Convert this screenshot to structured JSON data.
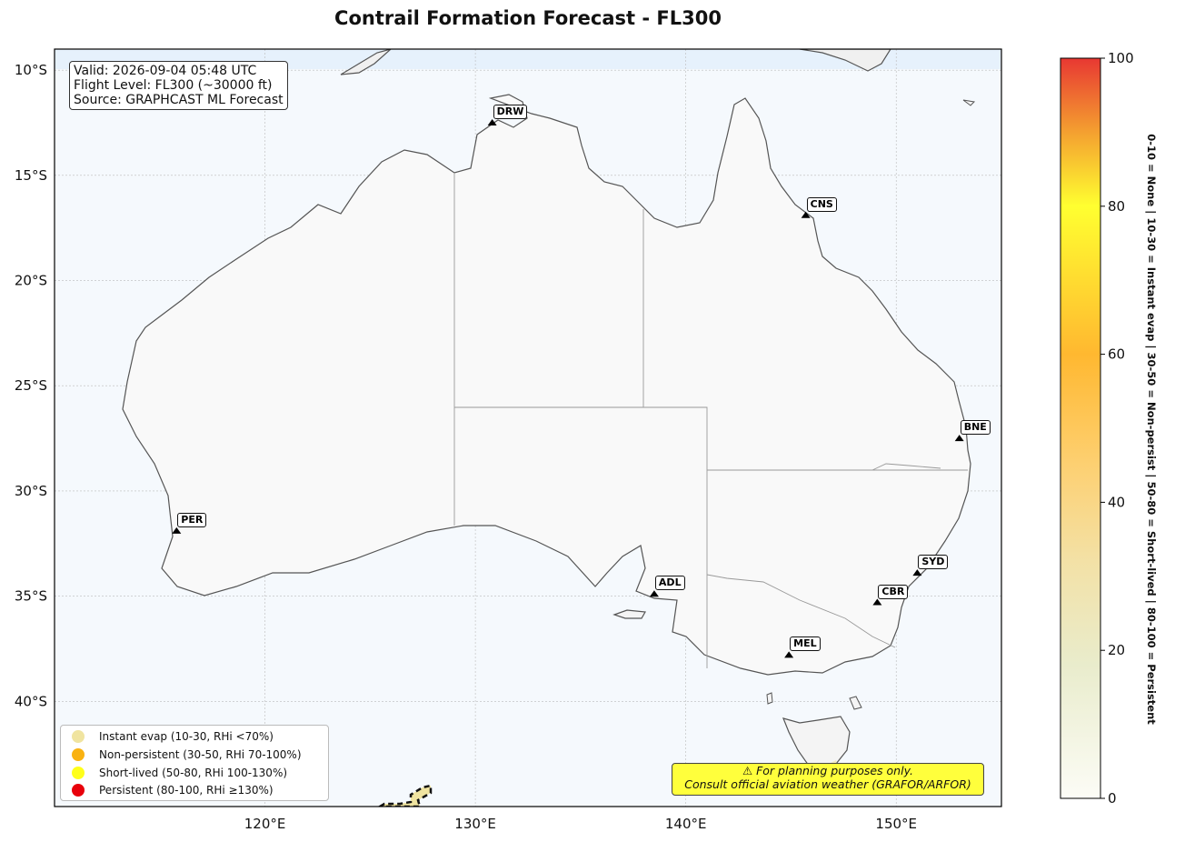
{
  "title": "Contrail Formation Forecast - FL300",
  "info": {
    "valid": "Valid: 2026-09-04 05:48 UTC",
    "flight_level": "Flight Level: FL300 (~30000 ft)",
    "source": "Source: GRAPHCAST ML Forecast"
  },
  "axes": {
    "lat_ticks": [
      "10°S",
      "15°S",
      "20°S",
      "25°S",
      "30°S",
      "35°S",
      "40°S"
    ],
    "lon_ticks": [
      "120°E",
      "130°E",
      "140°E",
      "150°E"
    ],
    "lat_values": [
      -10,
      -15,
      -20,
      -25,
      -30,
      -35,
      -40
    ],
    "lon_values": [
      120,
      130,
      140,
      150
    ],
    "lon_range": [
      110,
      155
    ],
    "lat_range": [
      -45,
      -9
    ]
  },
  "cities": [
    {
      "code": "DRW",
      "lon": 130.8,
      "lat": -12.5
    },
    {
      "code": "CNS",
      "lon": 145.7,
      "lat": -16.9
    },
    {
      "code": "BNE",
      "lon": 153.0,
      "lat": -27.5
    },
    {
      "code": "PER",
      "lon": 115.8,
      "lat": -31.9
    },
    {
      "code": "SYD",
      "lon": 151.0,
      "lat": -33.9
    },
    {
      "code": "CBR",
      "lon": 149.1,
      "lat": -35.3
    },
    {
      "code": "ADL",
      "lon": 138.5,
      "lat": -34.9
    },
    {
      "code": "MEL",
      "lon": 144.9,
      "lat": -37.8
    }
  ],
  "legend": [
    {
      "label": "Instant evap (10-30, RHi <70%)",
      "color": "#f0e4a0"
    },
    {
      "label": "Non-persistent (30-50, RHi 70-100%)",
      "color": "#f9b211"
    },
    {
      "label": "Short-lived (50-80, RHi 100-130%)",
      "color": "#ffff1a"
    },
    {
      "label": "Persistent (80-100, RHi ≥130%)",
      "color": "#e8000b"
    }
  ],
  "disclaimer": {
    "line1": "⚠ For planning purposes only.",
    "line2": "Consult official aviation weather (GRAFOR/ARFOR)"
  },
  "colorbar": {
    "ticks": [
      "0",
      "20",
      "40",
      "60",
      "80",
      "100"
    ],
    "tick_values": [
      0,
      20,
      40,
      60,
      80,
      100
    ],
    "side_label": "0-10 = None  |  10-30 = Instant evap  |  30-50 = Non-persist  |  50-80 = Short-lived  |  80-100 = Persistent"
  }
}
